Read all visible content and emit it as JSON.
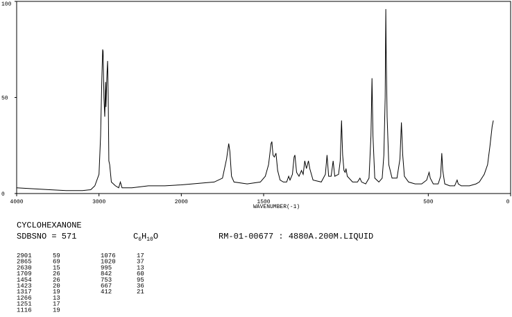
{
  "chart_data": {
    "type": "line",
    "color": "#000000",
    "x": [
      4000,
      3800,
      3600,
      3400,
      3200,
      3100,
      3050,
      3000,
      2980,
      2965,
      2955,
      2950,
      2940,
      2930,
      2920,
      2915,
      2905,
      2895,
      2888,
      2880,
      2870,
      2850,
      2800,
      2760,
      2740,
      2720,
      2600,
      2400,
      2200,
      2000,
      1800,
      1750,
      1725,
      1712,
      1705,
      1695,
      1680,
      1600,
      1520,
      1490,
      1470,
      1455,
      1450,
      1443,
      1435,
      1425,
      1415,
      1400,
      1380,
      1360,
      1348,
      1340,
      1325,
      1315,
      1310,
      1300,
      1285,
      1270,
      1260,
      1250,
      1240,
      1228,
      1220,
      1200,
      1150,
      1125,
      1115,
      1105,
      1090,
      1078,
      1068,
      1045,
      1035,
      1027,
      1020,
      1012,
      1005,
      1000,
      992,
      960,
      930,
      915,
      905,
      880,
      860,
      848,
      842,
      836,
      825,
      800,
      780,
      770,
      762,
      758,
      756,
      750,
      740,
      720,
      690,
      672,
      663,
      655,
      645,
      620,
      580,
      540,
      510,
      495,
      488,
      470,
      440,
      425,
      418,
      412,
      400,
      370,
      340,
      325,
      318,
      300,
      250,
      210,
      190,
      160,
      140,
      125,
      112,
      105
    ],
    "values": [
      3,
      2.5,
      2,
      1.5,
      1.5,
      2,
      4,
      10,
      30,
      60,
      75,
      74,
      50,
      40,
      58,
      45,
      60,
      69,
      50,
      17,
      15,
      6,
      4,
      3,
      6,
      3,
      3,
      4,
      4,
      4.5,
      6,
      8,
      18,
      26,
      22,
      9,
      6,
      5,
      6,
      9,
      15,
      26,
      27,
      20,
      19,
      21,
      12,
      7,
      6,
      6,
      9,
      7,
      10,
      19,
      20,
      11,
      9,
      12,
      10,
      17,
      13,
      17,
      13,
      7,
      6,
      10,
      20,
      9,
      9,
      17,
      9,
      10,
      17,
      38,
      20,
      12,
      11,
      13,
      9,
      6,
      6,
      8,
      6,
      5,
      8,
      30,
      60,
      30,
      8,
      6,
      8,
      20,
      50,
      96,
      75,
      40,
      15,
      8,
      8,
      18,
      37,
      20,
      9,
      6,
      5,
      5,
      7,
      11,
      8,
      5,
      5,
      9,
      21,
      12,
      5,
      4,
      4,
      7,
      5,
      4,
      4,
      5,
      6,
      10,
      15,
      25,
      35,
      38
    ],
    "xlim": [
      4000,
      0
    ],
    "x_scale_break": 2000,
    "ylim": [
      0,
      100
    ],
    "xticks": [
      4000,
      3000,
      2000,
      1500,
      500,
      0
    ],
    "yticks": [
      0,
      50,
      100
    ],
    "x_label": "WAVENUMBER(-1)"
  },
  "compound": "CYCLOHEXANONE",
  "sdbs_no": "SDBSNO = 571",
  "formula": [
    "C",
    "6",
    "H",
    "10",
    "O"
  ],
  "sample": "RM-01-00677 : 4880A.200M.LIQUID",
  "peaks": [
    [
      2901,
      59
    ],
    [
      2865,
      69
    ],
    [
      2630,
      15
    ],
    [
      1709,
      26
    ],
    [
      1454,
      26
    ],
    [
      1423,
      20
    ],
    [
      1317,
      19
    ],
    [
      1266,
      13
    ],
    [
      1251,
      17
    ],
    [
      1116,
      19
    ],
    [
      1076,
      17
    ],
    [
      1020,
      37
    ],
    [
      995,
      13
    ],
    [
      842,
      60
    ],
    [
      753,
      95
    ],
    [
      667,
      36
    ],
    [
      412,
      21
    ]
  ]
}
